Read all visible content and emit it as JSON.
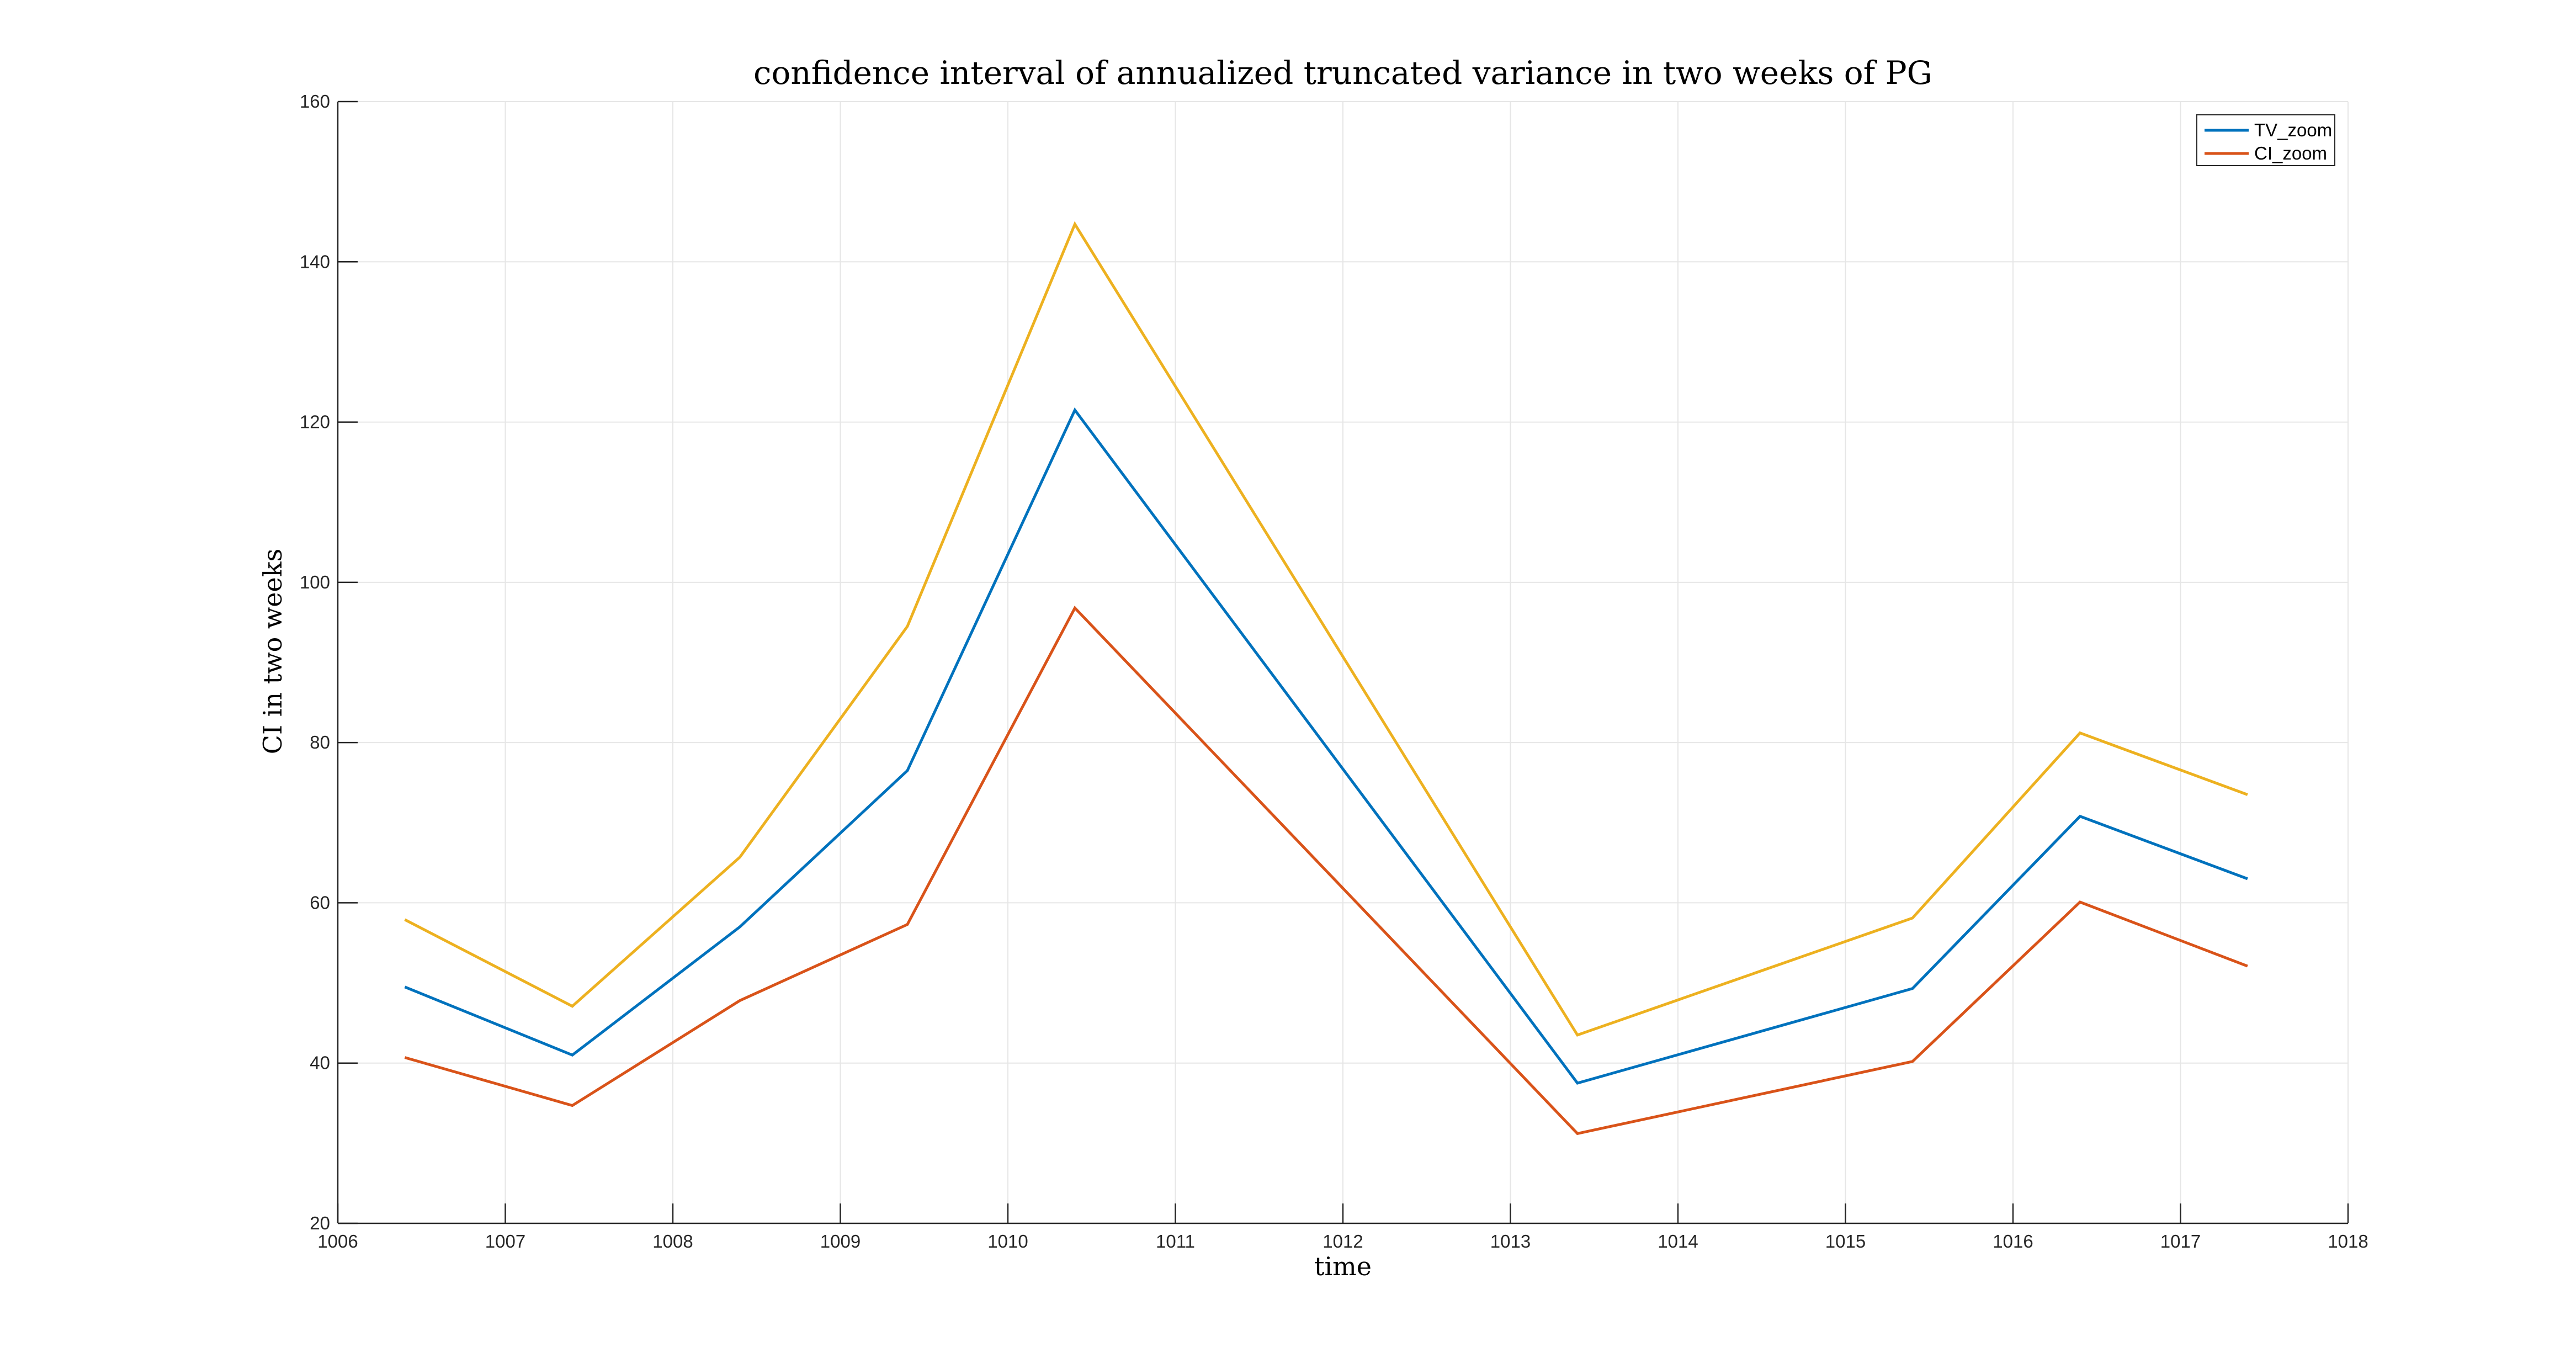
{
  "chart_data": {
    "type": "line",
    "title": "confidence interval of annualized truncated variance in two weeks of PG",
    "xlabel": "time",
    "ylabel": "CI in two weeks",
    "xlim": [
      1006,
      1018
    ],
    "ylim": [
      20,
      160
    ],
    "xticks": [
      1006,
      1007,
      1008,
      1009,
      1010,
      1011,
      1012,
      1013,
      1014,
      1015,
      1016,
      1017,
      1018
    ],
    "yticks": [
      20,
      40,
      60,
      80,
      100,
      120,
      140,
      160
    ],
    "grid": true,
    "legend_position": "top-right",
    "legend": [
      "TV_zoom",
      "CI_zoom"
    ],
    "x": [
      1006.4,
      1007.4,
      1008.4,
      1009.4,
      1010.4,
      1013.4,
      1015.4,
      1016.4,
      1017.4
    ],
    "series": [
      {
        "name": "TV_zoom",
        "color": "#0072BD",
        "values": [
          49.5,
          41.0,
          57.0,
          76.5,
          121.5,
          37.5,
          49.3,
          70.8,
          63.0
        ]
      },
      {
        "name": "CI_zoom",
        "color": "#D95319",
        "values": [
          40.7,
          34.7,
          47.8,
          57.3,
          96.8,
          31.2,
          40.2,
          60.1,
          52.1
        ]
      },
      {
        "color": "#EDB120",
        "values": [
          57.9,
          47.1,
          65.7,
          94.5,
          144.7,
          43.5,
          58.1,
          81.2,
          73.5
        ]
      }
    ]
  }
}
